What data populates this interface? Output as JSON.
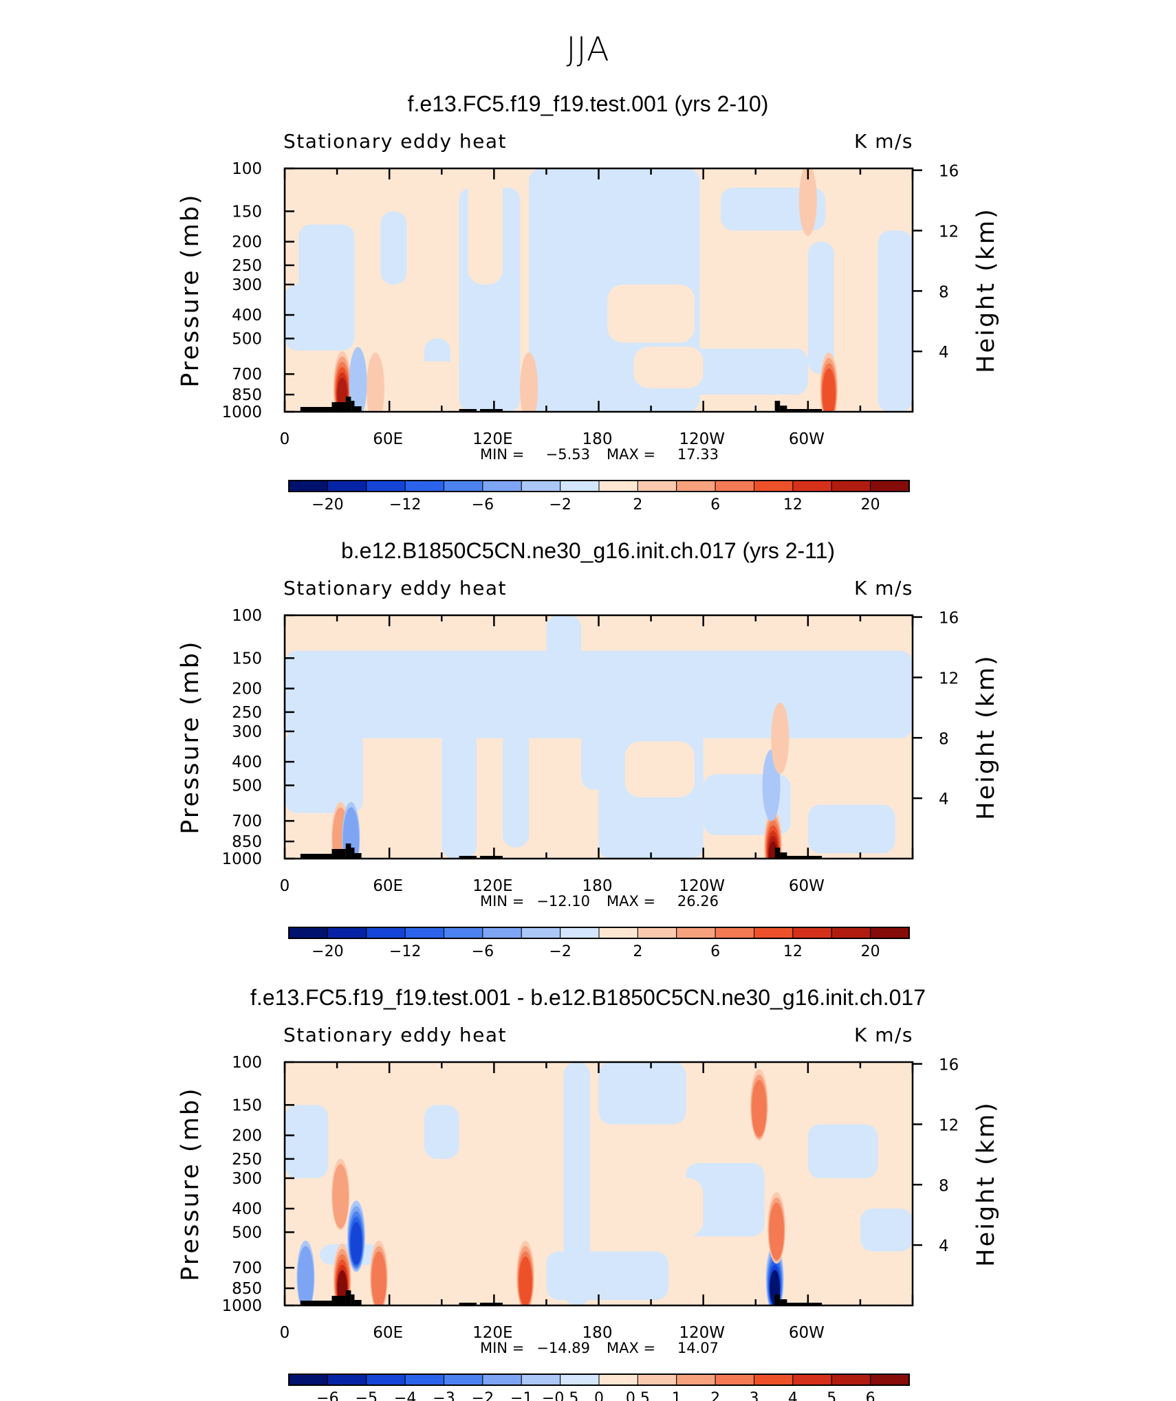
{
  "figure": {
    "title": "JJA"
  },
  "chart_data": [
    {
      "type": "heatmap",
      "title": "f.e13.FC5.f19_f19.test.001 (yrs 2-10)",
      "left_label": "Stationary eddy heat",
      "right_label": "K m/s",
      "ylabel": "Pressure (mb)",
      "ylabel_right": "Height (km)",
      "xticklabels": [
        "0",
        "60E",
        "120E",
        "180",
        "120W",
        "60W"
      ],
      "xlim": [
        0,
        360
      ],
      "yticks": [
        100,
        150,
        200,
        250,
        300,
        400,
        500,
        700,
        850,
        1000
      ],
      "ylim": [
        1000,
        100
      ],
      "yticks_right": [
        16,
        12,
        8,
        4
      ],
      "stats": {
        "min_label": "MIN =",
        "min_value": "−5.53",
        "max_label": "MAX =",
        "max_value": "17.33"
      },
      "colorbar": {
        "tick_labels": [
          "−20",
          "−12",
          "−6",
          "−2",
          "2",
          "6",
          "12",
          "20"
        ],
        "colors": [
          "#00126e",
          "#0524a5",
          "#1545d6",
          "#2b63ea",
          "#4c82ef",
          "#7ea5f4",
          "#aac7f8",
          "#d3e6fb",
          "#fde7d3",
          "#fbcaae",
          "#f7a17d",
          "#f37a52",
          "#ec5129",
          "#d5301a",
          "#b01c10",
          "#850c08"
        ]
      },
      "features": [
        {
          "lon": 33,
          "p": 790,
          "v": 17.3
        },
        {
          "lon": 312,
          "p": 800,
          "v": 8.0
        },
        {
          "lon": 140,
          "p": 800,
          "v": 3.0
        },
        {
          "lon": 52,
          "p": 800,
          "v": 3.0
        },
        {
          "lon": 42,
          "p": 760,
          "v": -3.0
        },
        {
          "lon": 300,
          "p": 135,
          "v": 2.5
        }
      ]
    },
    {
      "type": "heatmap",
      "title": "b.e12.B1850C5CN.ne30_g16.init.ch.017 (yrs 2-11)",
      "left_label": "Stationary eddy heat",
      "right_label": "K m/s",
      "ylabel": "Pressure (mb)",
      "ylabel_right": "Height (km)",
      "xticklabels": [
        "0",
        "60E",
        "120E",
        "180",
        "120W",
        "60W"
      ],
      "xlim": [
        0,
        360
      ],
      "yticks": [
        100,
        150,
        200,
        250,
        300,
        400,
        500,
        700,
        850,
        1000
      ],
      "ylim": [
        1000,
        100
      ],
      "yticks_right": [
        16,
        12,
        8,
        4
      ],
      "stats": {
        "min_label": "MIN =",
        "min_value": "−12.10",
        "max_label": "MAX =",
        "max_value": "26.26"
      },
      "colorbar": {
        "tick_labels": [
          "−20",
          "−12",
          "−6",
          "−2",
          "2",
          "6",
          "12",
          "20"
        ],
        "colors": [
          "#00126e",
          "#0524a5",
          "#1545d6",
          "#2b63ea",
          "#4c82ef",
          "#7ea5f4",
          "#aac7f8",
          "#d3e6fb",
          "#fde7d3",
          "#fbcaae",
          "#f7a17d",
          "#f37a52",
          "#ec5129",
          "#d5301a",
          "#b01c10",
          "#850c08"
        ]
      },
      "features": [
        {
          "lon": 280,
          "p": 880,
          "v": 26.3
        },
        {
          "lon": 32,
          "p": 820,
          "v": 5.0
        },
        {
          "lon": 38,
          "p": 820,
          "v": -4.0
        },
        {
          "lon": 279,
          "p": 500,
          "v": -3.0
        },
        {
          "lon": 284,
          "p": 320,
          "v": 3.0
        }
      ]
    },
    {
      "type": "heatmap",
      "title": "f.e13.FC5.f19_f19.test.001 - b.e12.B1850C5CN.ne30_g16.init.ch.017",
      "left_label": "Stationary eddy heat",
      "right_label": "K m/s",
      "ylabel": "Pressure (mb)",
      "ylabel_right": "Height (km)",
      "xticklabels": [
        "0",
        "60E",
        "120E",
        "180",
        "120W",
        "60W"
      ],
      "xlim": [
        0,
        360
      ],
      "yticks": [
        100,
        150,
        200,
        250,
        300,
        400,
        500,
        700,
        850,
        1000
      ],
      "ylim": [
        1000,
        100
      ],
      "yticks_right": [
        16,
        12,
        8,
        4
      ],
      "stats": {
        "min_label": "MIN =",
        "min_value": "−14.89",
        "max_label": "MAX =",
        "max_value": "14.07"
      },
      "colorbar": {
        "tick_labels": [
          "−6",
          "−5",
          "−4",
          "−3",
          "−2",
          "−1",
          "−0.5",
          "0",
          "0.5",
          "1",
          "2",
          "3",
          "4",
          "5",
          "6"
        ],
        "colors": [
          "#00126e",
          "#0524a5",
          "#1545d6",
          "#2b63ea",
          "#4c82ef",
          "#7ea5f4",
          "#aac7f8",
          "#d3e6fb",
          "#fde7d3",
          "#fbcaae",
          "#f7a17d",
          "#f37a52",
          "#ec5129",
          "#d5301a",
          "#b01c10",
          "#850c08"
        ]
      },
      "features": [
        {
          "lon": 33,
          "p": 780,
          "v": 14.0
        },
        {
          "lon": 281,
          "p": 780,
          "v": -14.9
        },
        {
          "lon": 41,
          "p": 520,
          "v": -4.0
        },
        {
          "lon": 138,
          "p": 760,
          "v": 3.0
        },
        {
          "lon": 54,
          "p": 760,
          "v": 2.5
        },
        {
          "lon": 272,
          "p": 150,
          "v": 2.0
        },
        {
          "lon": 12,
          "p": 760,
          "v": -1.5
        },
        {
          "lon": 32,
          "p": 350,
          "v": 1.5
        },
        {
          "lon": 282,
          "p": 480,
          "v": 2.0
        }
      ]
    }
  ]
}
